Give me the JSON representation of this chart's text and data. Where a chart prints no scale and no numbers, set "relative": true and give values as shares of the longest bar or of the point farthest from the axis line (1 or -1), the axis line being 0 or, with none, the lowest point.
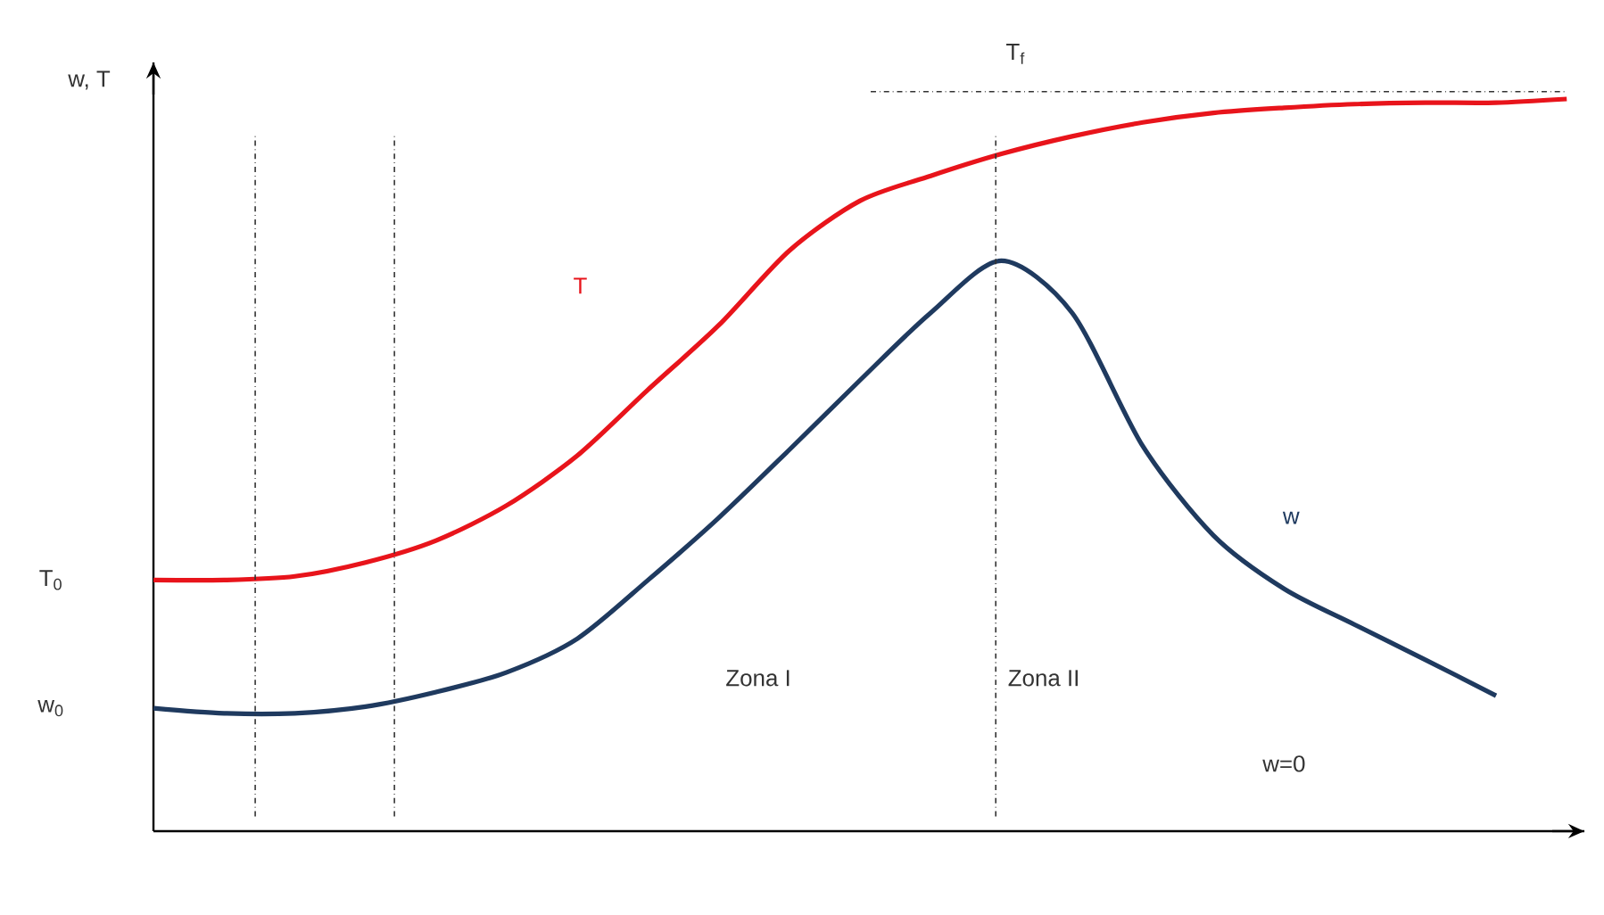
{
  "chart_data": {
    "type": "line",
    "relative": true,
    "ylabel": "w, T",
    "categories": [
      null,
      null,
      null,
      null,
      null,
      null,
      null,
      null,
      null,
      null,
      null,
      null,
      null,
      null,
      null,
      null,
      null,
      null,
      null,
      null,
      null
    ],
    "series": [
      {
        "name": "T",
        "color": "#e8141b",
        "values": [
          0.343,
          0.343,
          0.348,
          0.367,
          0.397,
          0.445,
          0.513,
          0.603,
          0.691,
          0.793,
          0.861,
          0.895,
          0.925,
          0.949,
          0.968,
          0.981,
          0.988,
          0.993,
          0.995,
          0.995,
          1
        ]
      },
      {
        "name": "w",
        "color": "#1f3a5f",
        "values": [
          0.168,
          0.161,
          0.161,
          0.17,
          0.19,
          0.217,
          0.263,
          0.343,
          0.428,
          0.521,
          0.616,
          0.708,
          0.779,
          0.708,
          0.526,
          0.404,
          0.331,
          0.282,
          0.234,
          0.185,
          null
        ]
      }
    ],
    "ref_lines": [
      {
        "axis": "y",
        "value": 1.01,
        "label": "T$_{f}$",
        "color": "#333333",
        "line_style": "dashdot"
      }
    ],
    "annotations": [
      "T$_{0}$",
      "w$_{0}$",
      "Zona I",
      "Zona II",
      "w=0"
    ],
    "marker": "none",
    "line_style": "solid"
  }
}
